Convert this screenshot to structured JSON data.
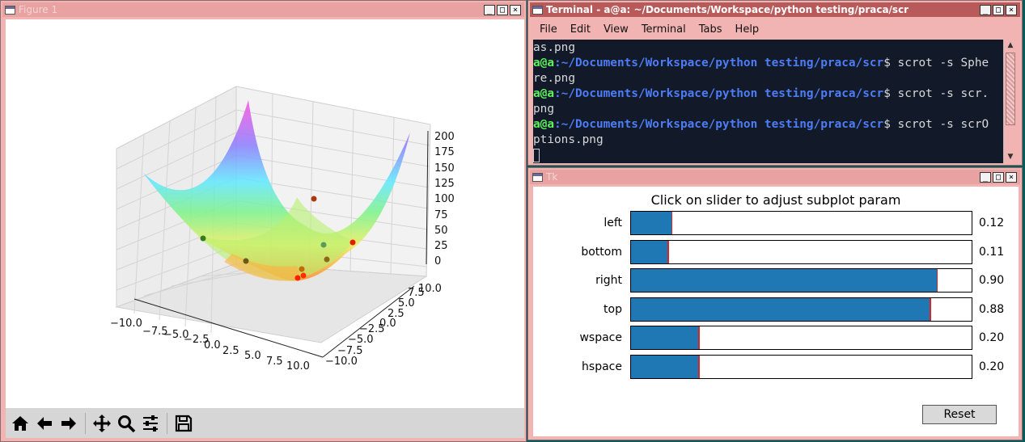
{
  "figure": {
    "title": "Figure 1",
    "zaxis_ticks": [
      "0",
      "25",
      "50",
      "75",
      "100",
      "125",
      "150",
      "175",
      "200"
    ],
    "xaxis_ticks": [
      "−10.0",
      "−7.5",
      "−5.0",
      "−2.5",
      "0.0",
      "2.5",
      "5.0",
      "7.5",
      "10.0"
    ],
    "yaxis_ticks": [
      "−10.0",
      "−7.5",
      "−5.0",
      "−2.5",
      "0.0",
      "2.5",
      "5.0",
      "7.5",
      "10.0"
    ],
    "toolbar": [
      "home-icon",
      "back-icon",
      "forward-icon",
      "pan-icon",
      "zoom-icon",
      "configure-subplots-icon",
      "save-icon"
    ]
  },
  "terminal": {
    "title": "Terminal - a@a: ~/Documents/Workspace/python testing/praca/scr",
    "menu": [
      "File",
      "Edit",
      "View",
      "Terminal",
      "Tabs",
      "Help"
    ],
    "lines": [
      {
        "user": "",
        "path": "",
        "text": "as.png"
      },
      {
        "user": "a@a",
        "path": ":~/Documents/Workspace/python testing/praca/scr",
        "text": "$ scrot -s Sphe"
      },
      {
        "user": "",
        "path": "",
        "text": "re.png"
      },
      {
        "user": "a@a",
        "path": ":~/Documents/Workspace/python testing/praca/scr",
        "text": "$ scrot -s scr."
      },
      {
        "user": "",
        "path": "",
        "text": "png"
      },
      {
        "user": "a@a",
        "path": ":~/Documents/Workspace/python testing/praca/scr",
        "text": "$ scrot -s scrO"
      },
      {
        "user": "",
        "path": "",
        "text": "ptions.png"
      }
    ]
  },
  "tk": {
    "title": "Tk",
    "heading": "Click on slider to adjust subplot param",
    "sliders": [
      {
        "label": "left",
        "value": 0.12,
        "display": "0.12"
      },
      {
        "label": "bottom",
        "value": 0.11,
        "display": "0.11"
      },
      {
        "label": "right",
        "value": 0.9,
        "display": "0.90"
      },
      {
        "label": "top",
        "value": 0.88,
        "display": "0.88"
      },
      {
        "label": "wspace",
        "value": 0.2,
        "display": "0.20"
      },
      {
        "label": "hspace",
        "value": 0.2,
        "display": "0.20"
      }
    ],
    "reset_label": "Reset"
  },
  "colors": {
    "slider_fill": "#1f77b4",
    "slider_marker": "#d62728",
    "active_title": "#b85a5a",
    "inactive_title": "#e8a2a2"
  }
}
